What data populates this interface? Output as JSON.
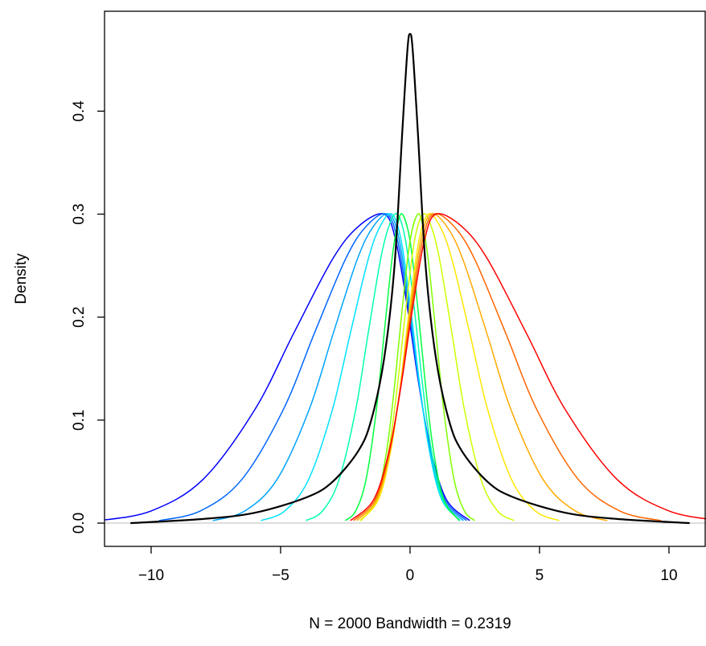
{
  "chart_data": {
    "type": "line",
    "xlabel": "N = 2000   Bandwidth = 0.2319",
    "ylabel": "Density",
    "xlim": [
      -11.8,
      11.43
    ],
    "ylim": [
      -0.0226,
      0.497
    ],
    "xticks": [
      {
        "value": -10,
        "label": "−10"
      },
      {
        "value": -5,
        "label": "−5"
      },
      0,
      5,
      10
    ],
    "yticks": [
      {
        "value": 0,
        "label": "0.0"
      },
      0.1,
      0.2,
      0.3,
      0.4
    ],
    "series": [
      {
        "color": "#0000FF",
        "x": [
          -12.0,
          -10,
          -8,
          -6,
          -4.5,
          -3,
          -2,
          -1,
          -0.55,
          -0.1,
          0.35,
          0.8,
          1.4,
          2.3
        ],
        "values": [
          0.0024,
          0.0118,
          0.0423,
          0.11,
          0.184,
          0.256,
          0.288,
          0.3,
          0.274,
          0.209,
          0.133,
          0.071,
          0.023,
          0.0024
        ]
      },
      {
        "color": "#0066FF",
        "x": [
          -9.7,
          -8.1,
          -6.5,
          -4.9,
          -3.7,
          -2.5,
          -1.7,
          -0.9,
          -0.48,
          -0.06,
          0.36,
          0.78,
          1.34,
          2.18
        ],
        "values": [
          0.0024,
          0.0118,
          0.0423,
          0.11,
          0.184,
          0.256,
          0.288,
          0.3,
          0.274,
          0.209,
          0.133,
          0.071,
          0.023,
          0.0024
        ]
      },
      {
        "color": "#00A3FF",
        "x": [
          -7.62,
          -6.38,
          -5.14,
          -3.9,
          -2.97,
          -2.04,
          -1.42,
          -0.8,
          -0.41,
          -0.02,
          0.37,
          0.76,
          1.28,
          2.06
        ],
        "values": [
          0.0024,
          0.0118,
          0.0423,
          0.11,
          0.184,
          0.256,
          0.288,
          0.3,
          0.274,
          0.209,
          0.133,
          0.071,
          0.023,
          0.0024
        ]
      },
      {
        "color": "#00E0FF",
        "x": [
          -5.76,
          -4.84,
          -3.92,
          -3.0,
          -2.31,
          -1.62,
          -1.16,
          -0.7,
          -0.34,
          0.02,
          0.38,
          0.74,
          1.22,
          1.94
        ],
        "values": [
          0.0024,
          0.0118,
          0.0423,
          0.11,
          0.184,
          0.256,
          0.288,
          0.3,
          0.274,
          0.209,
          0.133,
          0.071,
          0.023,
          0.0024
        ]
      },
      {
        "color": "#00FFB0",
        "x": [
          -4.02,
          -3.38,
          -2.74,
          -2.1,
          -1.62,
          -1.14,
          -0.82,
          -0.5,
          -0.17,
          0.16,
          0.49,
          0.82,
          1.26,
          1.92
        ],
        "values": [
          0.0024,
          0.0118,
          0.0423,
          0.11,
          0.184,
          0.256,
          0.288,
          0.3,
          0.274,
          0.209,
          0.133,
          0.071,
          0.023,
          0.0024
        ]
      },
      {
        "color": "#00FF40",
        "x": [
          -2.5,
          -2.1,
          -1.7,
          -1.3,
          -1.0,
          -0.7,
          -0.5,
          -0.3,
          0,
          0.3,
          0.6,
          0.9,
          1.3,
          1.9
        ],
        "values": [
          0.0024,
          0.0118,
          0.0423,
          0.11,
          0.184,
          0.256,
          0.288,
          0.3,
          0.274,
          0.209,
          0.133,
          0.071,
          0.023,
          0.0024
        ]
      },
      {
        "color": "#80FF00",
        "x": [
          2.5,
          2.1,
          1.7,
          1.3,
          1.0,
          0.7,
          0.5,
          0.3,
          0,
          -0.3,
          -0.6,
          -0.9,
          -1.3,
          -1.9
        ],
        "values": [
          0.0024,
          0.0118,
          0.0423,
          0.11,
          0.184,
          0.256,
          0.288,
          0.3,
          0.274,
          0.209,
          0.133,
          0.071,
          0.023,
          0.0024
        ]
      },
      {
        "color": "#CCFF00",
        "x": [
          4.02,
          3.38,
          2.74,
          2.1,
          1.62,
          1.14,
          0.82,
          0.5,
          0.17,
          -0.16,
          -0.49,
          -0.82,
          -1.26,
          -1.92
        ],
        "values": [
          0.0024,
          0.0118,
          0.0423,
          0.11,
          0.184,
          0.256,
          0.288,
          0.3,
          0.274,
          0.209,
          0.133,
          0.071,
          0.023,
          0.0024
        ]
      },
      {
        "color": "#FFE600",
        "x": [
          5.76,
          4.84,
          3.92,
          3.0,
          2.31,
          1.62,
          1.16,
          0.7,
          0.34,
          -0.02,
          -0.38,
          -0.74,
          -1.22,
          -1.94
        ],
        "values": [
          0.0024,
          0.0118,
          0.0423,
          0.11,
          0.184,
          0.256,
          0.288,
          0.3,
          0.274,
          0.209,
          0.133,
          0.071,
          0.023,
          0.0024
        ]
      },
      {
        "color": "#FFAA00",
        "x": [
          7.62,
          6.38,
          5.14,
          3.9,
          2.97,
          2.04,
          1.42,
          0.8,
          0.41,
          0.02,
          -0.37,
          -0.76,
          -1.28,
          -2.06
        ],
        "values": [
          0.0024,
          0.0118,
          0.0423,
          0.11,
          0.184,
          0.256,
          0.288,
          0.3,
          0.274,
          0.209,
          0.133,
          0.071,
          0.023,
          0.0024
        ]
      },
      {
        "color": "#FF6600",
        "x": [
          9.7,
          8.1,
          6.5,
          4.9,
          3.7,
          2.5,
          1.7,
          0.9,
          0.48,
          0.06,
          -0.36,
          -0.78,
          -1.34,
          -2.18
        ],
        "values": [
          0.0024,
          0.0118,
          0.0423,
          0.11,
          0.184,
          0.256,
          0.288,
          0.3,
          0.274,
          0.209,
          0.133,
          0.071,
          0.023,
          0.0024
        ]
      },
      {
        "color": "#FF0000",
        "x": [
          12.0,
          10,
          8,
          6,
          4.5,
          3,
          2,
          1,
          0.55,
          0.1,
          -0.35,
          -0.8,
          -1.4,
          -2.3
        ],
        "values": [
          0.0024,
          0.0118,
          0.0423,
          0.11,
          0.184,
          0.256,
          0.288,
          0.3,
          0.274,
          0.209,
          0.133,
          0.071,
          0.023,
          0.0024
        ]
      },
      {
        "color": "#000000",
        "x": [
          -10.8,
          -8,
          -6,
          -4,
          -3,
          -2,
          -1.5,
          -1,
          -0.6,
          -0.3,
          -0.1,
          0,
          0.1,
          0.3,
          0.6,
          1,
          1.5,
          2,
          3,
          4,
          6,
          8,
          10.8
        ],
        "values": [
          0,
          0.004,
          0.01,
          0.025,
          0.04,
          0.07,
          0.1,
          0.16,
          0.25,
          0.38,
          0.46,
          0.475,
          0.46,
          0.38,
          0.25,
          0.16,
          0.1,
          0.07,
          0.04,
          0.025,
          0.01,
          0.004,
          0
        ]
      }
    ]
  }
}
